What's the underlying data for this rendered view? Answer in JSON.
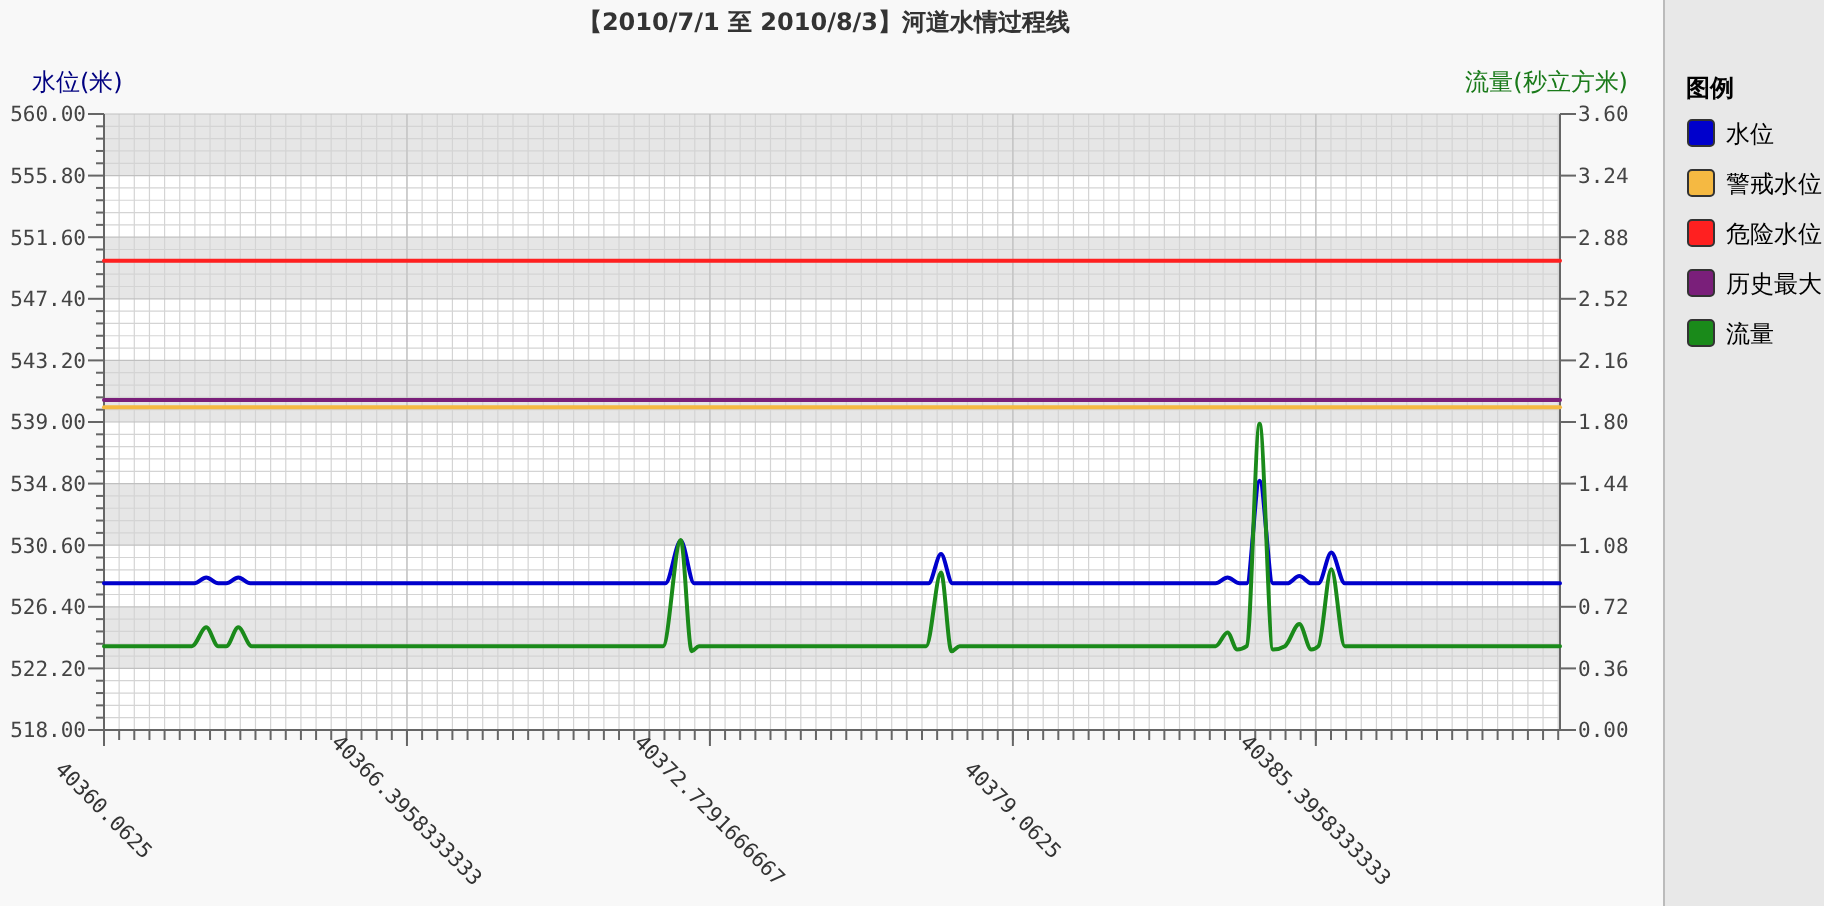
{
  "chart_data": {
    "type": "line",
    "title": "【2010/7/1 至 2010/8/3】河道水情过程线",
    "ylabel": "水位(米)",
    "y2label": "流量(秒立方米)",
    "legend_title": "图例",
    "legend": "right",
    "grid": true,
    "xlim": [
      40360.0625,
      40390.5
    ],
    "xticks": [
      40360.0625,
      {
        "value": 40366.3958333333,
        "label": "40366.3958333333"
      },
      {
        "value": 40372.7291666667,
        "label": "40372.7291666667"
      },
      40379.0625,
      {
        "value": 40385.3958333333,
        "label": "40385.3958333333"
      }
    ],
    "ylim": [
      518,
      560
    ],
    "yticks": [
      {
        "value": 518,
        "label": "518.00"
      },
      {
        "value": 522.2,
        "label": "522.20"
      },
      {
        "value": 526.4,
        "label": "526.40"
      },
      {
        "value": 530.6,
        "label": "530.60"
      },
      {
        "value": 534.8,
        "label": "534.80"
      },
      {
        "value": 539,
        "label": "539.00"
      },
      {
        "value": 543.2,
        "label": "543.20"
      },
      {
        "value": 547.4,
        "label": "547.40"
      },
      {
        "value": 551.6,
        "label": "551.60"
      },
      {
        "value": 555.8,
        "label": "555.80"
      },
      {
        "value": 560,
        "label": "560.00"
      }
    ],
    "y2lim": [
      0,
      3.6
    ],
    "y2ticks": [
      {
        "value": 0,
        "label": "0.00"
      },
      {
        "value": 0.36,
        "label": "0.36"
      },
      {
        "value": 0.72,
        "label": "0.72"
      },
      {
        "value": 1.08,
        "label": "1.08"
      },
      {
        "value": 1.44,
        "label": "1.44"
      },
      {
        "value": 1.8,
        "label": "1.80"
      },
      {
        "value": 2.16,
        "label": "2.16"
      },
      {
        "value": 2.52,
        "label": "2.52"
      },
      {
        "value": 2.88,
        "label": "2.88"
      },
      {
        "value": 3.24,
        "label": "3.24"
      },
      {
        "value": 3.6,
        "label": "3.60"
      }
    ],
    "series": [
      {
        "name": "水位",
        "color": "#0000cc",
        "x": [
          40360.0625,
          40361.95,
          40362.2,
          40362.45,
          40362.62,
          40362.87,
          40363.12,
          40371.8,
          40372.12,
          40372.4,
          40377.3,
          40377.56,
          40377.8,
          40383.3,
          40383.55,
          40383.8,
          40383.95,
          40384.22,
          40384.5,
          40384.8,
          40385.05,
          40385.3,
          40385.45,
          40385.72,
          40386.0,
          40390.5
        ],
        "values": [
          528,
          528,
          528.4,
          528,
          528,
          528.4,
          528,
          528,
          530.9,
          528,
          528,
          530,
          528,
          528,
          528.4,
          528,
          528,
          535,
          528,
          528,
          528.5,
          528,
          528,
          530.1,
          528,
          528
        ]
      },
      {
        "name": "警戒水位",
        "color": "#f5b942",
        "x": [
          40360.0625,
          40390.5
        ],
        "values": [
          540,
          540
        ]
      },
      {
        "name": "危险水位",
        "color": "#ff2020",
        "x": [
          40360.0625,
          40390.5
        ],
        "values": [
          550,
          550
        ]
      },
      {
        "name": "历史最大",
        "color": "#7a1f7a",
        "x": [
          40360.0625,
          40390.5
        ],
        "values": [
          540.5,
          540.5
        ]
      },
      {
        "name": "流量",
        "color": "#1a8a1a",
        "axis": "y2",
        "x": [
          40360.0625,
          40361.9,
          40362.2,
          40362.45,
          40362.62,
          40362.87,
          40363.15,
          40371.75,
          40372.12,
          40372.35,
          40372.5,
          40377.25,
          40377.56,
          40377.78,
          40377.95,
          40383.3,
          40383.55,
          40383.75,
          40383.95,
          40384.22,
          40384.5,
          40384.75,
          40385.05,
          40385.3,
          40385.45,
          40385.72,
          40386.0,
          40390.5
        ],
        "values": [
          0.49,
          0.49,
          0.6,
          0.49,
          0.49,
          0.6,
          0.49,
          0.49,
          1.11,
          0.46,
          0.49,
          0.49,
          0.92,
          0.46,
          0.49,
          0.49,
          0.57,
          0.47,
          0.49,
          1.79,
          0.47,
          0.49,
          0.62,
          0.47,
          0.49,
          0.94,
          0.49,
          0.49
        ]
      }
    ]
  }
}
